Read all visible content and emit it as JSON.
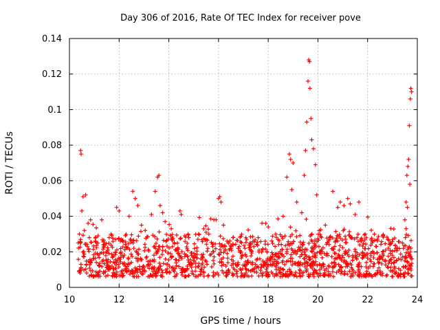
{
  "chart_data": {
    "type": "scatter",
    "title": "Day 306 of 2016, Rate Of TEC Index for receiver pove",
    "xlabel": "GPS time / hours",
    "ylabel": "ROTI / TECUs",
    "xlim": [
      10,
      24
    ],
    "ylim": [
      0,
      0.14
    ],
    "xticks": [
      "10",
      "12",
      "14",
      "16",
      "18",
      "20",
      "22",
      "24"
    ],
    "xtick_values": [
      10,
      12,
      14,
      16,
      18,
      20,
      22,
      24
    ],
    "yticks": [
      "0",
      "0.02",
      "0.04",
      "0.06",
      "0.08",
      "0.1",
      "0.12",
      "0.14"
    ],
    "ytick_values": [
      0,
      0.02,
      0.04,
      0.06,
      0.08,
      0.1,
      0.12,
      0.14
    ],
    "grid": true,
    "marker": "+",
    "color": "#ff0000",
    "series": [
      {
        "name": "ROTI",
        "points": [
          [
            10.45,
            0.077
          ],
          [
            10.47,
            0.075
          ],
          [
            10.5,
            0.043
          ],
          [
            10.55,
            0.051
          ],
          [
            10.65,
            0.052
          ],
          [
            10.75,
            0.036
          ],
          [
            10.85,
            0.038
          ],
          [
            10.6,
            0.032
          ],
          [
            10.4,
            0.03
          ],
          [
            10.8,
            0.028
          ],
          [
            11.3,
            0.038
          ],
          [
            11.6,
            0.028
          ],
          [
            11.9,
            0.045
          ],
          [
            12.0,
            0.043
          ],
          [
            12.4,
            0.04
          ],
          [
            12.55,
            0.054
          ],
          [
            12.65,
            0.05
          ],
          [
            12.75,
            0.046
          ],
          [
            12.9,
            0.035
          ],
          [
            13.05,
            0.032
          ],
          [
            13.3,
            0.041
          ],
          [
            13.45,
            0.054
          ],
          [
            13.55,
            0.062
          ],
          [
            13.6,
            0.063
          ],
          [
            13.65,
            0.046
          ],
          [
            13.75,
            0.042
          ],
          [
            13.85,
            0.037
          ],
          [
            14.1,
            0.033
          ],
          [
            14.45,
            0.043
          ],
          [
            14.5,
            0.041
          ],
          [
            14.8,
            0.028
          ],
          [
            15.2,
            0.03
          ],
          [
            15.5,
            0.031
          ],
          [
            15.9,
            0.038
          ],
          [
            16.0,
            0.05
          ],
          [
            16.05,
            0.051
          ],
          [
            16.1,
            0.048
          ],
          [
            16.2,
            0.035
          ],
          [
            16.4,
            0.025
          ],
          [
            16.8,
            0.022
          ],
          [
            17.3,
            0.024
          ],
          [
            17.6,
            0.028
          ],
          [
            17.9,
            0.036
          ],
          [
            18.0,
            0.034
          ],
          [
            18.3,
            0.03
          ],
          [
            18.6,
            0.04
          ],
          [
            18.75,
            0.062
          ],
          [
            18.85,
            0.075
          ],
          [
            18.9,
            0.072
          ],
          [
            19.0,
            0.07
          ],
          [
            18.95,
            0.055
          ],
          [
            19.15,
            0.048
          ],
          [
            19.35,
            0.042
          ],
          [
            19.45,
            0.063
          ],
          [
            19.5,
            0.077
          ],
          [
            19.55,
            0.093
          ],
          [
            19.6,
            0.116
          ],
          [
            19.63,
            0.128
          ],
          [
            19.66,
            0.127
          ],
          [
            19.68,
            0.112
          ],
          [
            19.72,
            0.095
          ],
          [
            19.75,
            0.083
          ],
          [
            19.82,
            0.078
          ],
          [
            19.9,
            0.069
          ],
          [
            19.95,
            0.052
          ],
          [
            20.05,
            0.032
          ],
          [
            20.3,
            0.035
          ],
          [
            20.6,
            0.054
          ],
          [
            20.8,
            0.045
          ],
          [
            20.9,
            0.048
          ],
          [
            21.05,
            0.046
          ],
          [
            21.2,
            0.05
          ],
          [
            21.3,
            0.047
          ],
          [
            21.5,
            0.041
          ],
          [
            21.65,
            0.048
          ],
          [
            21.9,
            0.03
          ],
          [
            22.2,
            0.026
          ],
          [
            22.6,
            0.02
          ],
          [
            22.9,
            0.024
          ],
          [
            23.2,
            0.022
          ],
          [
            23.4,
            0.025
          ],
          [
            23.5,
            0.038
          ],
          [
            23.55,
            0.048
          ],
          [
            23.58,
            0.063
          ],
          [
            23.62,
            0.068
          ],
          [
            23.65,
            0.072
          ],
          [
            23.68,
            0.091
          ],
          [
            23.72,
            0.106
          ],
          [
            23.74,
            0.112
          ],
          [
            23.77,
            0.11
          ],
          [
            23.7,
            0.058
          ],
          [
            23.6,
            0.045
          ],
          [
            23.55,
            0.033
          ],
          [
            23.52,
            0.028
          ],
          [
            23.75,
            0.012
          ]
        ]
      }
    ],
    "dense_band": {
      "description": "background noise band",
      "x_range": [
        10.35,
        23.8
      ],
      "typical_low": 0.006,
      "typical_high": 0.03
    }
  }
}
